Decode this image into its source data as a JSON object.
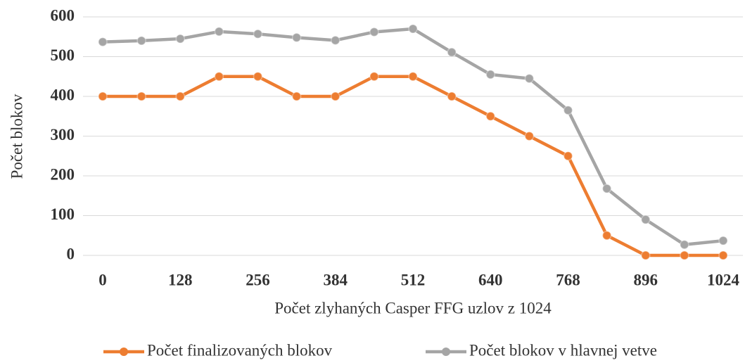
{
  "chart_data": {
    "type": "line",
    "x": [
      0,
      64,
      128,
      192,
      256,
      320,
      384,
      448,
      512,
      576,
      640,
      704,
      768,
      832,
      896,
      960,
      1024
    ],
    "series": [
      {
        "name": "Počet finalizovaných blokov",
        "color": "#ed7d31",
        "values": [
          400,
          400,
          400,
          450,
          450,
          400,
          400,
          450,
          450,
          400,
          350,
          300,
          250,
          50,
          0,
          0,
          0
        ]
      },
      {
        "name": "Počet blokov v hlavnej vetve",
        "color": "#a5a5a5",
        "values": [
          537,
          540,
          545,
          563,
          557,
          548,
          541,
          562,
          570,
          511,
          455,
          445,
          365,
          168,
          90,
          27,
          37
        ]
      }
    ],
    "xlabel": "Počet zlyhaných Casper FFG uzlov z 1024",
    "ylabel": "Počet blokov",
    "xlim": [
      0,
      1024
    ],
    "xticks": [
      0,
      128,
      256,
      384,
      512,
      640,
      768,
      896,
      1024
    ],
    "ylim": [
      0,
      600
    ],
    "yticks": [
      0,
      100,
      200,
      300,
      400,
      500,
      600
    ],
    "grid": true,
    "legend": "bottom"
  }
}
